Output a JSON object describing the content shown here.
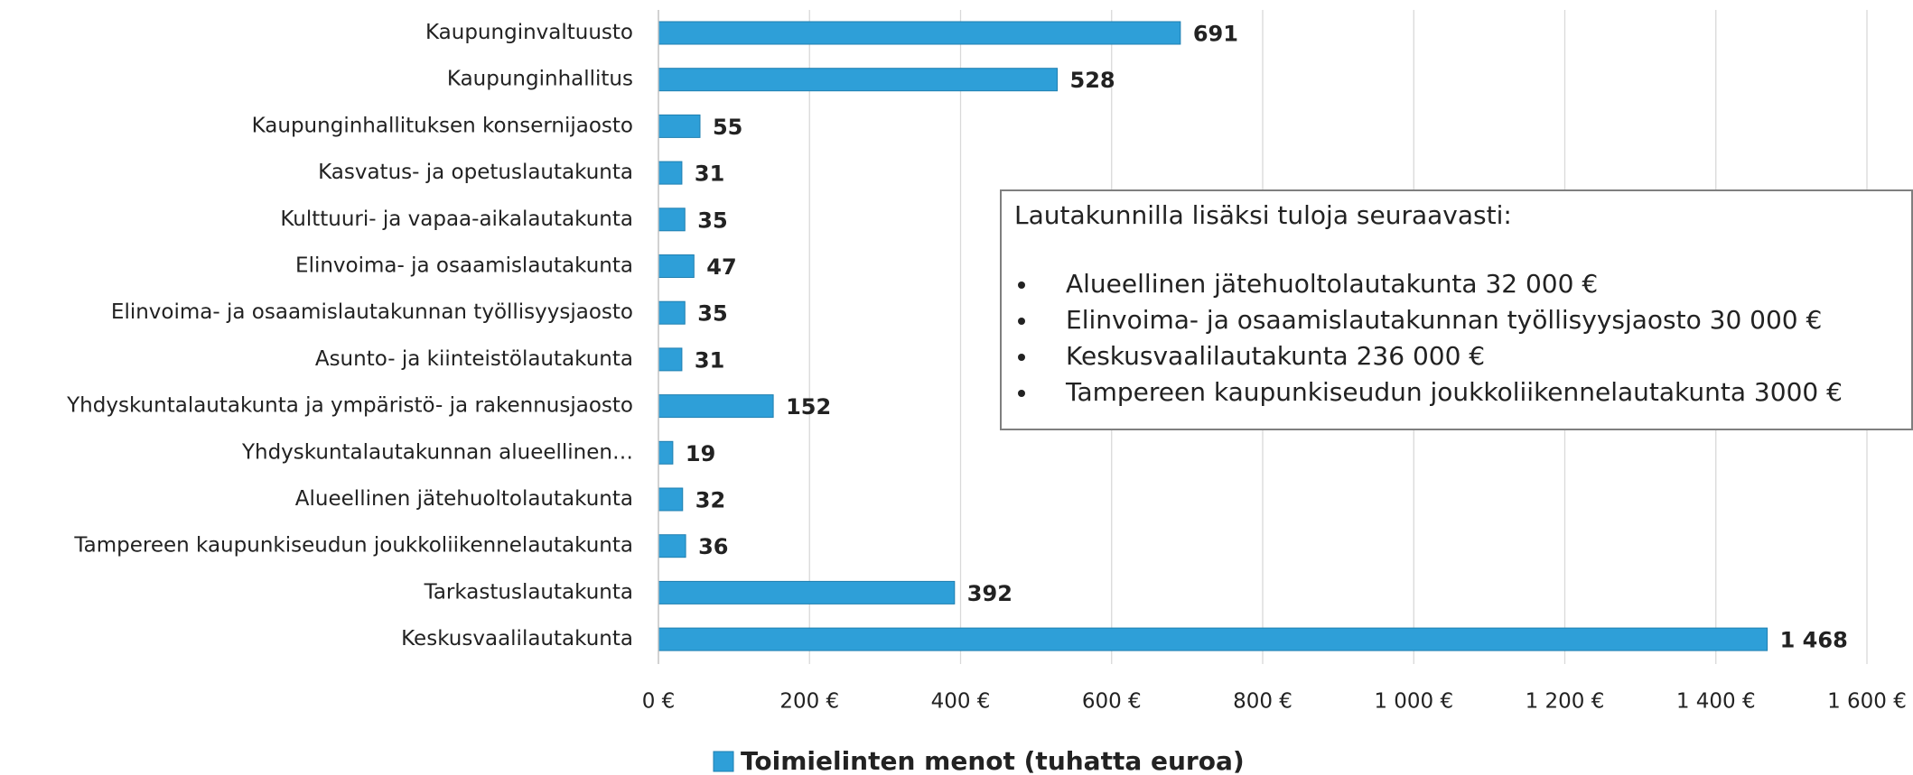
{
  "chart_data": {
    "type": "bar",
    "orientation": "horizontal",
    "categories": [
      "Kaupunginvaltuusto",
      "Kaupunginhallitus",
      "Kaupunginhallituksen konsernijaosto",
      "Kasvatus- ja opetuslautakunta",
      "Kulttuuri- ja vapaa-aikalautakunta",
      "Elinvoima- ja osaamislautakunta",
      "Elinvoima- ja osaamislautakunnan työllisyysjaosto",
      "Asunto- ja kiinteistölautakunta",
      "Yhdyskuntalautakunta ja ympäristö- ja rakennusjaosto",
      "Yhdyskuntalautakunnan alueellinen…",
      "Alueellinen jätehuoltolautakunta",
      "Tampereen kaupunkiseudun joukkoliikennelautakunta",
      "Tarkastuslautakunta",
      "Keskusvaalilautakunta"
    ],
    "series": [
      {
        "name": "Toimielinten menot (tuhatta euroa)",
        "color": "#2e9fd8",
        "values": [
          691,
          528,
          55,
          31,
          35,
          47,
          35,
          31,
          152,
          19,
          32,
          36,
          392,
          1468
        ],
        "value_labels": [
          "691",
          "528",
          "55",
          "31",
          "35",
          "47",
          "35",
          "31",
          "152",
          "19",
          "32",
          "36",
          "392",
          "1 468"
        ]
      }
    ],
    "xlim": [
      0,
      1600
    ],
    "xticks": [
      {
        "value": 0,
        "label": "0 €"
      },
      {
        "value": 200,
        "label": "200 €"
      },
      {
        "value": 400,
        "label": "400 €"
      },
      {
        "value": 600,
        "label": "600 €"
      },
      {
        "value": 800,
        "label": "800 €"
      },
      {
        "value": 1000,
        "label": "1 000 €"
      },
      {
        "value": 1200,
        "label": "1 200 €"
      },
      {
        "value": 1400,
        "label": "1 400 €"
      },
      {
        "value": 1600,
        "label": "1 600 €"
      }
    ],
    "grid": true,
    "legend": "bottom",
    "annotation": {
      "title": "Lautakunnilla lisäksi tuloja seuraavasti:",
      "items": [
        "Alueellinen jätehuoltolautakunta 32 000 €",
        "Elinvoima- ja osaamislautakunnan työllisyysjaosto 30 000 €",
        "Keskusvaalilautakunta 236 000 €",
        "Tampereen kaupunkiseudun joukkoliikennelautakunta 3000 €"
      ]
    }
  }
}
